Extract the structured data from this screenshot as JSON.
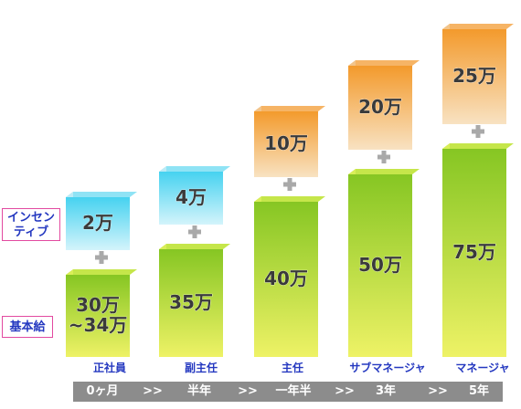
{
  "labels": {
    "incentive_line1": "インセン",
    "incentive_line2": "ティブ",
    "base_salary": "基本給"
  },
  "chart_data": {
    "type": "bar",
    "stacked": true,
    "categories": [
      "正社員",
      "副主任",
      "主任",
      "サブマネージャ",
      "マネージャ"
    ],
    "series": [
      {
        "name": "基本給",
        "values": [
          34,
          35,
          40,
          50,
          75
        ],
        "labels": [
          "30万\n~34万",
          "35万",
          "40万",
          "50万",
          "75万"
        ]
      },
      {
        "name": "インセンティブ",
        "values": [
          2,
          4,
          10,
          20,
          25
        ],
        "labels": [
          "2万",
          "4万",
          "10万",
          "20万",
          "25万"
        ]
      }
    ],
    "timeline": [
      "0ヶ月",
      ">>",
      "半年",
      ">>",
      "一年半",
      ">>",
      "3年",
      ">>",
      "5年"
    ],
    "colors": {
      "base_front_top": "#86c623",
      "base_front_bottom": "#eef266",
      "base_side": "#d9ee57",
      "inc_low_front_top": "#46d2f0",
      "inc_low_front_bottom": "#c9f1fa",
      "inc_low_side": "#bdebf6",
      "inc_high_front_top": "#f39a2c",
      "inc_high_front_bottom": "#f7dcb4",
      "inc_high_side": "#f2c48a",
      "plus": "#a9a9a9"
    }
  }
}
